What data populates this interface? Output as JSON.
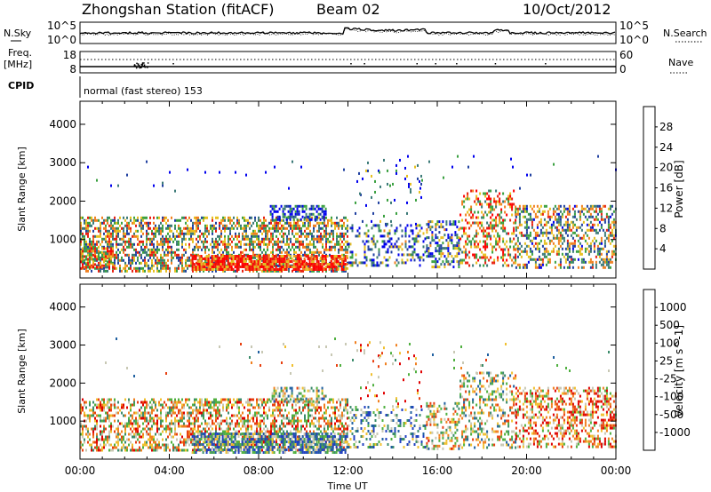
{
  "header": {
    "station": "Zhongshan Station (fitACF)",
    "beam": "Beam 02",
    "date": "10/Oct/2012"
  },
  "panels": {
    "nsky_label": "N.Sky",
    "nsky_ticks": [
      "10^5",
      "10^0"
    ],
    "nsearch_label": "N.Search",
    "freq_label": "Freq.",
    "freq_unit": "[MHz]",
    "freq_ticks": [
      "18",
      "8"
    ],
    "nave_label": "Nave",
    "nave_ticks": [
      "60",
      "0"
    ],
    "cpid_label": "CPID",
    "cpid_text": "normal (fast stereo) 153"
  },
  "chart_data": [
    {
      "type": "heatmap",
      "name": "power",
      "ylabel": "Slant Range [km]",
      "yticks": [
        "1000",
        "2000",
        "3000",
        "4000"
      ],
      "colorbar_label": "Power [dB]",
      "colorbar_ticks": [
        "4",
        "8",
        "12",
        "16",
        "20",
        "24",
        "28"
      ],
      "colors": [
        "#0000ee",
        "#2040a0",
        "#3c7a78",
        "#3aa040",
        "#e6c020",
        "#f08020",
        "#e82010",
        "#ff0000"
      ],
      "clusters": [
        {
          "x0": 0.0,
          "x1": 12.0,
          "y0": 200,
          "y1": 1600,
          "density": 0.55,
          "bias": 0.5
        },
        {
          "x0": 5.0,
          "x1": 12.0,
          "y0": 200,
          "y1": 600,
          "density": 0.8,
          "bias": 0.85
        },
        {
          "x0": 0.0,
          "x1": 1.5,
          "y0": 300,
          "y1": 800,
          "density": 0.7,
          "bias": 0.7
        },
        {
          "x0": 8.5,
          "x1": 11.0,
          "y0": 1500,
          "y1": 1900,
          "density": 0.55,
          "bias": 0.15
        },
        {
          "x0": 12.0,
          "x1": 15.5,
          "y0": 300,
          "y1": 1400,
          "density": 0.25,
          "bias": 0.3
        },
        {
          "x0": 12.3,
          "x1": 15.3,
          "y0": 1400,
          "y1": 3100,
          "density": 0.06,
          "bias": 0.2
        },
        {
          "x0": 15.5,
          "x1": 17.0,
          "y0": 300,
          "y1": 1500,
          "density": 0.45,
          "bias": 0.35
        },
        {
          "x0": 17.0,
          "x1": 19.5,
          "y0": 300,
          "y1": 2300,
          "density": 0.4,
          "bias": 0.65
        },
        {
          "x0": 19.5,
          "x1": 24.0,
          "y0": 300,
          "y1": 1900,
          "density": 0.45,
          "bias": 0.45
        },
        {
          "x0": 0.0,
          "x1": 24.0,
          "y0": 2200,
          "y1": 3200,
          "density": 0.01,
          "bias": 0.2
        }
      ]
    },
    {
      "type": "heatmap",
      "name": "velocity",
      "xlabel": "Time UT",
      "ylabel": "Slant Range [km]",
      "xticks": [
        "00:00",
        "04:00",
        "08:00",
        "12:00",
        "16:00",
        "20:00",
        "00:00"
      ],
      "yticks": [
        "1000",
        "2000",
        "3000",
        "4000"
      ],
      "colorbar_label": "Velocity [m s^-1]",
      "colorbar_ticks": [
        "1000",
        "500",
        "100",
        "25",
        "-25",
        "-100",
        "-500",
        "-1000"
      ],
      "colors": [
        "#2040c0",
        "#2060a0",
        "#3c8c6c",
        "#50b040",
        "#c8c8b4",
        "#f0c030",
        "#f08020",
        "#e84010",
        "#e00000"
      ],
      "clusters": [
        {
          "x0": 0.0,
          "x1": 12.0,
          "y0": 200,
          "y1": 1600,
          "density": 0.5,
          "bias": 0.6
        },
        {
          "x0": 5.0,
          "x1": 12.0,
          "y0": 200,
          "y1": 700,
          "density": 0.7,
          "bias": 0.25
        },
        {
          "x0": 8.5,
          "x1": 11.0,
          "y0": 1500,
          "y1": 1900,
          "density": 0.5,
          "bias": 0.45
        },
        {
          "x0": 12.0,
          "x1": 15.5,
          "y0": 300,
          "y1": 1400,
          "density": 0.25,
          "bias": 0.3
        },
        {
          "x0": 12.3,
          "x1": 15.3,
          "y0": 1400,
          "y1": 3100,
          "density": 0.06,
          "bias": 0.7
        },
        {
          "x0": 15.5,
          "x1": 17.0,
          "y0": 300,
          "y1": 1500,
          "density": 0.4,
          "bias": 0.55
        },
        {
          "x0": 17.0,
          "x1": 19.5,
          "y0": 300,
          "y1": 2300,
          "density": 0.35,
          "bias": 0.5
        },
        {
          "x0": 19.5,
          "x1": 24.0,
          "y0": 300,
          "y1": 1900,
          "density": 0.45,
          "bias": 0.7
        },
        {
          "x0": 0.0,
          "x1": 24.0,
          "y0": 2200,
          "y1": 3200,
          "density": 0.01,
          "bias": 0.5
        }
      ]
    }
  ]
}
